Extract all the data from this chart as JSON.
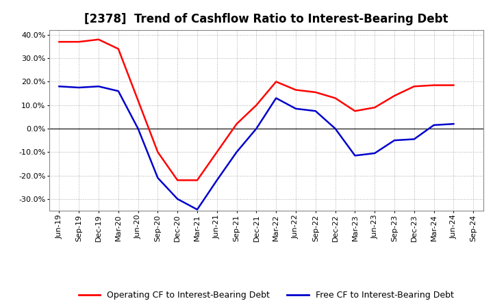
{
  "title": "[2378]  Trend of Cashflow Ratio to Interest-Bearing Debt",
  "x_labels": [
    "Jun-19",
    "Sep-19",
    "Dec-19",
    "Mar-20",
    "Jun-20",
    "Sep-20",
    "Dec-20",
    "Mar-21",
    "Jun-21",
    "Sep-21",
    "Dec-21",
    "Mar-22",
    "Jun-22",
    "Sep-22",
    "Dec-22",
    "Mar-23",
    "Jun-23",
    "Sep-23",
    "Dec-23",
    "Mar-24",
    "Jun-24",
    "Sep-24"
  ],
  "operating_cf_data": [
    37.0,
    37.0,
    38.0,
    34.0,
    12.0,
    -10.0,
    -22.0,
    -22.0,
    -10.0,
    2.0,
    10.0,
    20.0,
    16.5,
    15.5,
    13.0,
    7.5,
    9.0,
    14.0,
    18.0,
    18.5,
    18.5,
    null
  ],
  "free_cf_data": [
    18.0,
    17.5,
    18.0,
    16.0,
    0.0,
    -21.0,
    -30.0,
    -34.5,
    -22.0,
    -10.0,
    0.0,
    13.0,
    8.5,
    7.5,
    0.0,
    -11.5,
    -10.5,
    -5.0,
    -4.5,
    1.5,
    2.0,
    null
  ],
  "ylim": [
    -35,
    42
  ],
  "yticks": [
    -30,
    -20,
    -10,
    0,
    10,
    20,
    30,
    40
  ],
  "operating_color": "#FF0000",
  "free_color": "#0000CC",
  "background_color": "#FFFFFF",
  "grid_color": "#AAAAAA",
  "legend_operating": "Operating CF to Interest-Bearing Debt",
  "legend_free": "Free CF to Interest-Bearing Debt",
  "title_fontsize": 12,
  "axis_fontsize": 8
}
